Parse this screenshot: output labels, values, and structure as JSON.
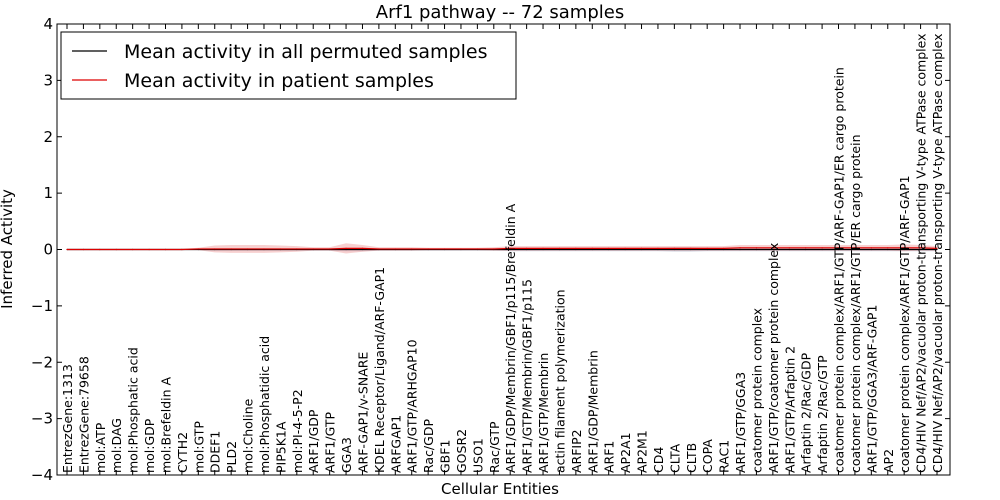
{
  "chart_data": {
    "type": "line",
    "title": "Arf1 pathway -- 72 samples",
    "xlabel": "Cellular Entities",
    "ylabel": "Inferred Activity",
    "ylim": [
      -4,
      4
    ],
    "yticks": [
      -4,
      -3,
      -2,
      -1,
      0,
      1,
      2,
      3,
      4
    ],
    "ytick_labels": [
      "−4",
      "−3",
      "−2",
      "−1",
      "0",
      "1",
      "2",
      "3",
      "4"
    ],
    "legend_position": "top-left",
    "categories": [
      "EntrezGene:1313",
      "EntrezGene:79658",
      "mol:ATP",
      "mol:DAG",
      "mol:Phosphatic acid",
      "mol:GDP",
      "mol:Brefeldin A",
      "CYTH2",
      "mol:GTP",
      "DDEF1",
      "PLD2",
      "mol:Choline",
      "mol:Phosphatidic acid",
      "PIP5K1A",
      "mol:PI-4-5-P2",
      "ARF1/GDP",
      "ARF1/GTP",
      "GGA3",
      "ARF-GAP1/v-SNARE",
      "KDEL Receptor/Ligand/ARF-GAP1",
      "ARFGAP1",
      "ARF1/GTP/ARHGAP10",
      "Rac/GDP",
      "GBF1",
      "GOSR2",
      "USO1",
      "Rac/GTP",
      "ARF1/GDP/Membrin/GBF1/p115/Brefeldin A",
      "ARF1/GTP/Membrin/GBF1/p115",
      "ARF1/GTP/Membrin",
      "actin filament polymerization",
      "ARFIP2",
      "ARF1/GDP/Membrin",
      "ARF1",
      "AP2A1",
      "AP2M1",
      "CD4",
      "CLTA",
      "CLTB",
      "COPA",
      "RAC1",
      "ARF1/GTP/GGA3",
      "coatomer protein complex",
      "ARF1/GTP/coatomer protein complex",
      "ARF1/GTP/Arfaptin 2",
      "Arfaptin 2/Rac/GDP",
      "Arfaptin 2/Rac/GTP",
      "coatomer protein complex/ARF1/GTP/ARF-GAP1/ER cargo protein",
      "coatomer protein complex/ARF1/GTP/ER cargo protein",
      "ARF1/GTP/GGA3/ARF-GAP1",
      "AP2",
      "coatomer protein complex/ARF1/GTP/ARF-GAP1",
      "CD4/HIV Nef/AP2/vacuolar proton-transporting V-type ATPase complex",
      "CD4/HIV Nef/AP2/vacuolar proton-transporting V-type ATPase complex"
    ],
    "series": [
      {
        "name": "Mean activity in all permuted samples",
        "color": "#000000",
        "band_color": "#9a9ab8",
        "values": [
          0,
          0,
          0,
          0,
          0,
          0,
          0,
          0,
          0,
          0,
          0,
          0,
          0,
          0,
          0,
          0,
          0,
          0,
          0,
          0,
          0,
          0,
          0,
          0,
          0,
          0,
          0,
          0,
          0,
          0,
          0,
          0,
          0,
          0,
          0,
          0,
          0,
          0,
          0,
          0,
          0,
          0,
          0,
          0,
          0,
          0,
          0,
          0,
          0,
          0,
          0,
          0,
          0,
          0
        ],
        "band": [
          0.01,
          0.01,
          0.01,
          0.01,
          0.01,
          0.01,
          0.01,
          0.01,
          0.01,
          0.02,
          0.02,
          0.02,
          0.02,
          0.02,
          0.02,
          0.02,
          0.02,
          0.03,
          0.03,
          0.02,
          0.02,
          0.02,
          0.02,
          0.02,
          0.02,
          0.02,
          0.02,
          0.03,
          0.03,
          0.03,
          0.03,
          0.03,
          0.03,
          0.03,
          0.03,
          0.03,
          0.03,
          0.04,
          0.04,
          0.03,
          0.03,
          0.03,
          0.03,
          0.03,
          0.03,
          0.03,
          0.03,
          0.03,
          0.03,
          0.03,
          0.03,
          0.03,
          0.03,
          0.03
        ]
      },
      {
        "name": "Mean activity in patient samples",
        "color": "#dd0000",
        "band_color": "#e87878",
        "values": [
          0,
          0,
          0,
          0,
          0,
          0,
          0,
          0,
          0.01,
          0.01,
          0.01,
          0.01,
          0.01,
          0.01,
          0.01,
          0.01,
          0.01,
          0.02,
          0.02,
          0.01,
          0.01,
          0.01,
          0.01,
          0.01,
          0.01,
          0.01,
          0.01,
          0.02,
          0.02,
          0.02,
          0.02,
          0.02,
          0.02,
          0.02,
          0.02,
          0.02,
          0.02,
          0.02,
          0.02,
          0.02,
          0.02,
          0.03,
          0.03,
          0.03,
          0.03,
          0.03,
          0.03,
          0.03,
          0.03,
          0.03,
          0.03,
          0.03,
          0.03,
          0.02
        ],
        "band": [
          0.01,
          0.01,
          0.01,
          0.01,
          0.01,
          0.01,
          0.01,
          0.01,
          0.02,
          0.06,
          0.07,
          0.07,
          0.07,
          0.06,
          0.05,
          0.03,
          0.03,
          0.09,
          0.06,
          0.03,
          0.03,
          0.03,
          0.02,
          0.02,
          0.02,
          0.02,
          0.03,
          0.04,
          0.04,
          0.04,
          0.04,
          0.04,
          0.04,
          0.04,
          0.04,
          0.04,
          0.04,
          0.04,
          0.04,
          0.04,
          0.04,
          0.05,
          0.05,
          0.05,
          0.05,
          0.05,
          0.05,
          0.05,
          0.05,
          0.05,
          0.05,
          0.06,
          0.05,
          0.04
        ]
      }
    ]
  }
}
